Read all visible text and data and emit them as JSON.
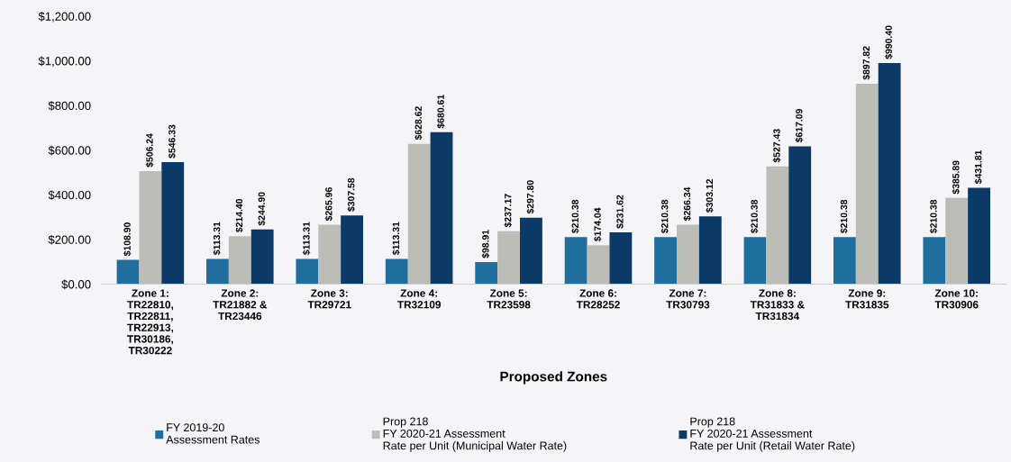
{
  "chart_data": {
    "type": "bar",
    "xlabel": "Proposed Zones",
    "categories": [
      "Zone 1:\nTR22810,\nTR22811,\nTR22913,\nTR30186,\nTR30222",
      "Zone 2:\nTR21882 &\nTR23446",
      "Zone 3:\nTR29721",
      "Zone 4:\nTR32109",
      "Zone 5:\nTR23598",
      "Zone 6:\nTR28252",
      "Zone 7:\nTR30793",
      "Zone 8:\nTR31833 &\nTR31834",
      "Zone 9:\nTR31835",
      "Zone 10:\nTR30906"
    ],
    "series": [
      {
        "name": "FY 2019-20\nAssessment Rates",
        "color": "#1f6e9e",
        "values": [
          108.9,
          113.31,
          113.31,
          113.31,
          98.91,
          210.38,
          210.38,
          210.38,
          210.38,
          210.38
        ],
        "value_labels": [
          "$108.90",
          "$113.31",
          "$113.31",
          "$113.31",
          "$98.91",
          "$210.38",
          "$210.38",
          "$210.38",
          "$210.38",
          "$210.38"
        ]
      },
      {
        "name": "Prop 218\nFY 2020-21 Assessment\nRate per Unit (Municipal Water Rate)",
        "color": "#bdbdb8",
        "values": [
          506.24,
          214.4,
          265.96,
          628.62,
          237.17,
          174.04,
          266.34,
          527.43,
          897.82,
          385.89
        ],
        "value_labels": [
          "$506.24",
          "$214.40",
          "$265.96",
          "$628.62",
          "$237.17",
          "$174.04",
          "$266.34",
          "$527.43",
          "$897.82",
          "$385.89"
        ]
      },
      {
        "name": "Prop 218\nFY 2020-21 Assessment\nRate per Unit (Retail Water Rate)",
        "color": "#0c3a66",
        "values": [
          546.33,
          244.9,
          307.58,
          680.61,
          297.8,
          231.62,
          303.12,
          617.09,
          990.4,
          431.81
        ],
        "value_labels": [
          "$546.33",
          "$244.90",
          "$307.58",
          "$680.61",
          "$297.80",
          "$231.62",
          "$303.12",
          "$617.09",
          "$990.40",
          "$431.81"
        ]
      }
    ],
    "ylim": [
      0,
      1200
    ],
    "yticks": [
      {
        "value": 0,
        "label": "$0.00"
      },
      {
        "value": 200,
        "label": "$200.00"
      },
      {
        "value": 400,
        "label": "$400.00"
      },
      {
        "value": 600,
        "label": "$600.00"
      },
      {
        "value": 800,
        "label": "$800.00"
      },
      {
        "value": 1000,
        "label": "$1,000.00"
      },
      {
        "value": 1200,
        "label": "$1,200.00"
      }
    ],
    "grid": false,
    "legend": "bottom"
  }
}
